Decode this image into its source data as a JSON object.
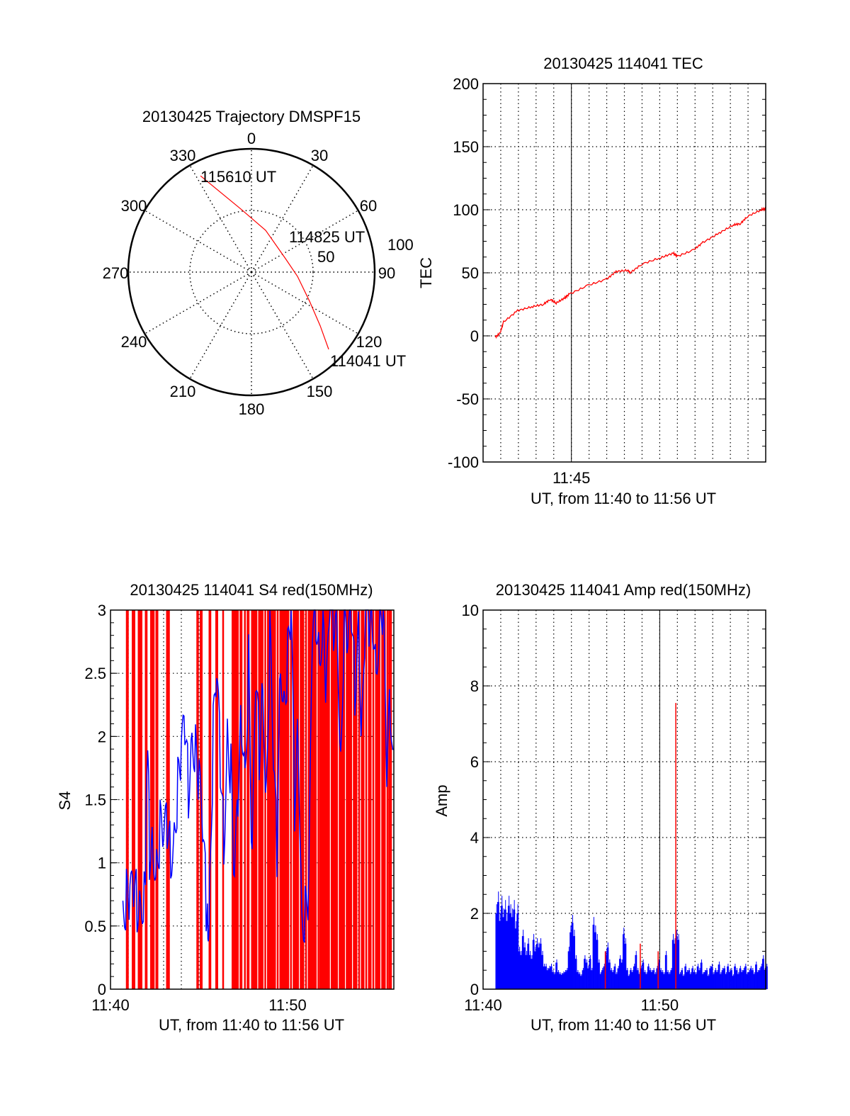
{
  "chart_data": [
    {
      "type": "polar",
      "title": "20130425 Trajectory DMSPF15",
      "azimuth_labels": [
        "0",
        "30",
        "60",
        "90",
        "120",
        "150",
        "180",
        "210",
        "240",
        "270",
        "300",
        "330"
      ],
      "radial_labels": [
        "50",
        "100"
      ],
      "rlim": [
        0,
        100
      ],
      "grid": true,
      "series": [
        {
          "name": "trajectory",
          "color": "#ff0000",
          "points": [
            [
              332.1,
              88.3
            ],
            [
              350.4,
              51.9
            ],
            [
              18.7,
              35.8
            ],
            [
              68.4,
              29.7
            ],
            [
              95.3,
              37.5
            ],
            [
              116.6,
              52.7
            ],
            [
              128,
              70.8
            ],
            [
              135,
              88.6
            ]
          ]
        }
      ],
      "annotations": {
        "end": "115610 UT",
        "mid": "114825 UT",
        "start": "114041 UT"
      }
    },
    {
      "type": "line",
      "title": "20130425 114041 TEC",
      "xlabel": "UT, from 11:40 to 11:56 UT",
      "ylabel": "TEC",
      "xlim_minutes_after_1140": [
        0,
        16
      ],
      "ylim": [
        -100,
        200
      ],
      "yticks": [
        "-100",
        "-50",
        "0",
        "50",
        "100",
        "150",
        "200"
      ],
      "xticks": [
        {
          "minute": 5,
          "label": "11:45"
        }
      ],
      "grid": true,
      "series": [
        {
          "name": "TEC",
          "color": "#ff0000",
          "x": [
            0.69,
            0.96,
            1.16,
            1.95,
            2.75,
            3.41,
            3.81,
            4.14,
            4.61,
            4.87,
            5.94,
            7.0,
            7.53,
            8.2,
            8.33,
            9.0,
            10.06,
            10.78,
            10.98,
            11.91,
            12.44,
            13.37,
            14.17,
            14.57,
            14.97,
            15.76,
            16.0
          ],
          "y": [
            -1,
            2,
            11,
            20,
            23,
            25,
            29,
            26,
            30,
            33,
            40,
            45,
            51,
            52,
            50,
            57,
            62,
            65.6,
            63,
            68,
            74,
            81.5,
            88,
            89,
            94.7,
            100,
            101
          ]
        }
      ]
    },
    {
      "type": "line",
      "title": "20130425 114041 S4 red(150MHz)",
      "xlabel": "UT, from 11:40 to 11:56 UT",
      "ylabel": "S4",
      "xlim_minutes_after_1140": [
        0,
        16
      ],
      "ylim": [
        0,
        3
      ],
      "yticks": [
        "0",
        "0.5",
        "1",
        "1.5",
        "2",
        "2.5",
        "3"
      ],
      "xticks": [
        {
          "minute": 0,
          "label": "11:40"
        },
        {
          "minute": 10,
          "label": "11:50"
        }
      ],
      "grid": true,
      "series": [
        {
          "name": "S4 red spikes",
          "color": "#ff0000",
          "kind": "bars",
          "value_clipped": 3,
          "x": [
            0.93,
            0.97,
            1.26,
            1.3,
            1.6,
            1.66,
            1.7,
            2.0,
            2.05,
            2.3,
            2.39,
            2.45,
            2.6,
            2.66,
            3.2,
            3.25,
            4.91,
            4.95,
            5.1,
            5.6,
            5.65,
            5.98,
            6.37,
            6.9,
            7.0,
            7.1,
            7.2,
            7.35,
            7.4,
            7.6,
            7.75,
            7.8,
            8.0,
            8.1,
            8.25,
            8.4,
            8.5,
            8.6,
            8.75,
            8.9,
            9.0,
            9.1,
            9.2,
            9.3,
            9.45,
            9.6,
            9.7,
            9.8,
            9.9,
            10.05,
            10.2,
            10.35,
            10.5,
            10.6,
            10.75,
            10.9,
            11.05,
            11.2,
            11.3,
            11.4,
            11.5,
            11.6,
            11.75,
            11.85,
            12.0,
            12.1,
            12.2,
            12.35,
            12.5,
            12.6,
            12.7,
            12.8,
            12.95,
            13.1,
            13.2,
            13.35,
            13.5,
            13.6,
            13.75,
            13.9,
            14.05,
            14.2,
            14.3,
            14.45,
            14.6,
            14.7,
            14.85,
            15.0,
            15.1,
            15.2,
            15.35,
            15.5,
            15.65,
            15.75,
            15.85
          ]
        },
        {
          "name": "S4",
          "color": "#0000ff",
          "kind": "line",
          "x": [
            0.7,
            0.9,
            1.1,
            1.3,
            1.5,
            1.7,
            1.9,
            2.0,
            2.1,
            2.2,
            2.4,
            2.6,
            2.8,
            3.0,
            3.2,
            3.4,
            3.6,
            3.8,
            4.0,
            4.2,
            4.4,
            4.6,
            4.8,
            5.0,
            5.2,
            5.4,
            5.5,
            5.6,
            5.8,
            6.0,
            6.2,
            6.4,
            6.6,
            6.8,
            7.0,
            7.2,
            7.4,
            7.6,
            7.8,
            8.0,
            8.2,
            8.4,
            8.6,
            8.8,
            9.0,
            9.2,
            9.4,
            9.6,
            9.8,
            10.0,
            10.2,
            10.4,
            10.6,
            10.8,
            11.0,
            11.2,
            11.4,
            11.6,
            11.8,
            12.0,
            12.2,
            12.4,
            12.6,
            12.8,
            13.0,
            13.2,
            13.4,
            13.6,
            13.8,
            14.0,
            14.2,
            14.4,
            14.6,
            14.8,
            15.0,
            15.2,
            15.4,
            15.6,
            15.8,
            16.0
          ],
          "y": [
            0.7,
            0.72,
            0.65,
            0.75,
            0.7,
            0.78,
            0.75,
            1.1,
            1.9,
            1.1,
            1.2,
            1.0,
            1.25,
            1.1,
            1.3,
            1.1,
            1.3,
            1.6,
            1.8,
            2.05,
            1.6,
            2.1,
            1.9,
            1.6,
            1.2,
            0.7,
            0.55,
            0.8,
            2.0,
            2.4,
            1.8,
            1.2,
            2.1,
            1.7,
            0.75,
            1.5,
            2.2,
            1.8,
            2.6,
            0.9,
            2.4,
            1.9,
            2.5,
            1.5,
            2.8,
            1.7,
            1.1,
            2.7,
            2.3,
            2.6,
            2.9,
            1.4,
            2.1,
            0.65,
            0.6,
            0.72,
            2.8,
            3,
            2.7,
            3,
            2.3,
            3,
            2.9,
            3,
            1.8,
            3,
            2.6,
            3,
            2.4,
            3,
            2.0,
            3,
            2.8,
            3,
            2.6,
            3,
            3,
            1.6,
            2.3,
            1.6
          ]
        }
      ]
    },
    {
      "type": "bar",
      "title": "20130425 114041 Amp red(150MHz)",
      "xlabel": "UT, from 11:40 to 11:56 UT",
      "ylabel": "Amp",
      "xlim_minutes_after_1140": [
        0,
        16
      ],
      "ylim": [
        0,
        10
      ],
      "yticks": [
        "0",
        "2",
        "4",
        "6",
        "8",
        "10"
      ],
      "xticks": [
        {
          "minute": 0,
          "label": "11:40"
        },
        {
          "minute": 10,
          "label": "11:50"
        }
      ],
      "grid": true,
      "series": [
        {
          "name": "Amp",
          "color": "#0000ff",
          "x_start": 0.7,
          "x_step": 0.1,
          "values": [
            2.0,
            2.3,
            1.8,
            2.2,
            1.9,
            2.1,
            1.8,
            2.2,
            2.0,
            1.9,
            2.1,
            1.6,
            2.0,
            1.0,
            0.9,
            1.4,
            1.1,
            0.9,
            1.2,
            0.9,
            0.8,
            1.3,
            1.0,
            1.2,
            1.1,
            1.2,
            0.9,
            0.6,
            0.6,
            0.5,
            0.55,
            0.6,
            0.45,
            0.4,
            0.7,
            0.45,
            0.4,
            0.38,
            0.42,
            0.45,
            0.5,
            1.0,
            1.5,
            1.75,
            1.4,
            0.8,
            0.45,
            0.4,
            0.35,
            0.5,
            0.8,
            0.7,
            0.55,
            0.8,
            0.5,
            1.7,
            1.5,
            1.3,
            0.7,
            0.4,
            0.5,
            0.6,
            0.9,
            1.1,
            0.7,
            0.5,
            0.45,
            0.6,
            0.4,
            0.55,
            0.8,
            0.7,
            1.45,
            1.2,
            0.5,
            0.35,
            0.5,
            0.45,
            0.6,
            0.9,
            0.5,
            0.4,
            0.55,
            0.7,
            0.45,
            0.4,
            0.6,
            0.5,
            0.45,
            0.5,
            0.4,
            0.55,
            0.7,
            0.5,
            0.45,
            0.4,
            0.9,
            0.45,
            0.4,
            0.5,
            1.3,
            1.2,
            1.4,
            1.3,
            0.4,
            0.5,
            0.35,
            0.6,
            0.45,
            0.5,
            0.4,
            0.55,
            0.45,
            0.4,
            0.6,
            0.5,
            0.7,
            0.4,
            0.45,
            0.5,
            0.35,
            0.55,
            0.6,
            0.4,
            0.5,
            0.45,
            0.65,
            0.4,
            0.5,
            0.55,
            0.4,
            0.6,
            0.45,
            0.5,
            0.35,
            0.6,
            0.5,
            0.4,
            0.55,
            0.45,
            0.5,
            0.6,
            0.4,
            0.45,
            0.55,
            0.5,
            0.4,
            0.65,
            0.45,
            0.5,
            0.6,
            0.8,
            0.5,
            0.6
          ]
        },
        {
          "name": "Amp red spikes",
          "color": "#ff0000",
          "x": [
            6.89,
            8.87,
            9.88,
            10.88
          ],
          "values": [
            1.0,
            1.2,
            1.0,
            7.55
          ]
        }
      ]
    }
  ]
}
